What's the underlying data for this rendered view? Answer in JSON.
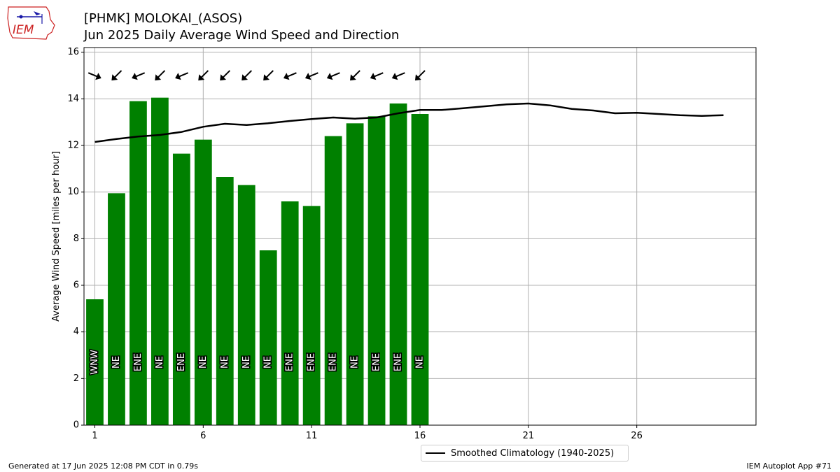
{
  "header": {
    "title_line1": "[PHMK] MOLOKAI_(ASOS)",
    "title_line2": "Jun 2025 Daily Average Wind Speed and Direction",
    "logo_text": "IEM"
  },
  "footer": {
    "generated": "Generated at 17 Jun 2025 12:08 PM CDT in 0.79s",
    "app": "IEM Autoplot App #71"
  },
  "legend": {
    "label": "Smoothed Climatology (1940-2025)"
  },
  "colors": {
    "bars": "#008000",
    "climatology": "#000000",
    "grid": "#b0b0b0",
    "logo_red": "#cc2222",
    "logo_blue": "#1a1aa8"
  },
  "chart_data": {
    "type": "bar",
    "ylabel": "Average Wind Speed [miles per hour]",
    "xlabel": "",
    "xlim": [
      0.5,
      31.5
    ],
    "ylim": [
      0,
      16.2
    ],
    "xticks": [
      1,
      6,
      11,
      16,
      21,
      26
    ],
    "yticks": [
      0,
      2,
      4,
      6,
      8,
      10,
      12,
      14,
      16
    ],
    "grid": true,
    "legend_position": "bottom-center",
    "series": [
      {
        "type": "bar",
        "days": [
          1,
          2,
          3,
          4,
          5,
          6,
          7,
          8,
          9,
          10,
          11,
          12,
          13,
          14,
          15,
          16
        ],
        "values": [
          5.4,
          9.95,
          13.9,
          14.05,
          11.65,
          12.25,
          10.65,
          10.3,
          7.5,
          9.6,
          9.4,
          12.4,
          12.95,
          13.25,
          13.8,
          13.35
        ],
        "direction_labels": [
          "WNW",
          "NE",
          "ENE",
          "NE",
          "ENE",
          "NE",
          "NE",
          "NE",
          "NE",
          "ENE",
          "ENE",
          "ENE",
          "NE",
          "ENE",
          "ENE",
          "NE"
        ],
        "direction_degrees": [
          292.5,
          45,
          67.5,
          45,
          67.5,
          45,
          45,
          45,
          45,
          67.5,
          67.5,
          67.5,
          45,
          67.5,
          67.5,
          45
        ]
      },
      {
        "type": "line",
        "name": "Smoothed Climatology (1940-2025)",
        "days": [
          1,
          2,
          3,
          4,
          5,
          6,
          7,
          8,
          9,
          10,
          11,
          12,
          13,
          14,
          15,
          16,
          17,
          18,
          19,
          20,
          21,
          22,
          23,
          24,
          25,
          26,
          27,
          28,
          29,
          30
        ],
        "values": [
          12.15,
          12.28,
          12.38,
          12.45,
          12.58,
          12.8,
          12.93,
          12.88,
          12.95,
          13.05,
          13.13,
          13.2,
          13.15,
          13.2,
          13.38,
          13.52,
          13.52,
          13.6,
          13.68,
          13.76,
          13.8,
          13.72,
          13.57,
          13.5,
          13.38,
          13.4,
          13.35,
          13.3,
          13.27,
          13.3
        ]
      }
    ]
  }
}
